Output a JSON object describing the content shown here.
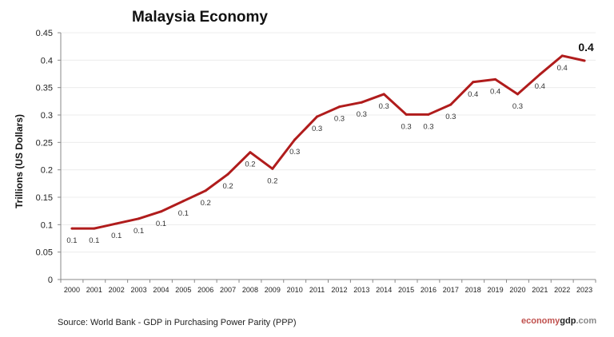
{
  "chart_data": {
    "type": "line",
    "title": "Malaysia Economy",
    "xlabel": "",
    "ylabel": "Trillions (US Dollars)",
    "ylim": [
      0,
      0.45
    ],
    "yticks": [
      "0",
      "0.05",
      "0.1",
      "0.15",
      "0.2",
      "0.25",
      "0.3",
      "0.35",
      "0.4",
      "0.45"
    ],
    "grid": true,
    "legend": "none",
    "line_color": "#B01C1C",
    "categories": [
      "2000",
      "2001",
      "2002",
      "2003",
      "2004",
      "2005",
      "2006",
      "2007",
      "2008",
      "2009",
      "2010",
      "2011",
      "2012",
      "2013",
      "2014",
      "2015",
      "2016",
      "2017",
      "2018",
      "2019",
      "2020",
      "2021",
      "2022",
      "2023"
    ],
    "values": [
      0.093,
      0.093,
      0.102,
      0.111,
      0.124,
      0.143,
      0.162,
      0.192,
      0.232,
      0.202,
      0.255,
      0.297,
      0.315,
      0.323,
      0.338,
      0.301,
      0.301,
      0.319,
      0.36,
      0.365,
      0.338,
      0.374,
      0.408,
      0.399
    ],
    "data_labels": [
      "0.1",
      "0.1",
      "0.1",
      "0.1",
      "0.1",
      "0.1",
      "0.2",
      "0.2",
      "0.2",
      "0.2",
      "0.3",
      "0.3",
      "0.3",
      "0.3",
      "0.3",
      "0.3",
      "0.3",
      "0.3",
      "0.4",
      "0.4",
      "0.3",
      "0.4",
      "0.4",
      "0.4"
    ]
  },
  "source": "Source:  World Bank -  GDP  in Purchasing Power Parity (PPP)",
  "brand": {
    "part1": "economy",
    "part2": "gdp",
    "part3": ".com",
    "color1": "#C0504D",
    "color2": "#222222",
    "color3": "#888888"
  }
}
